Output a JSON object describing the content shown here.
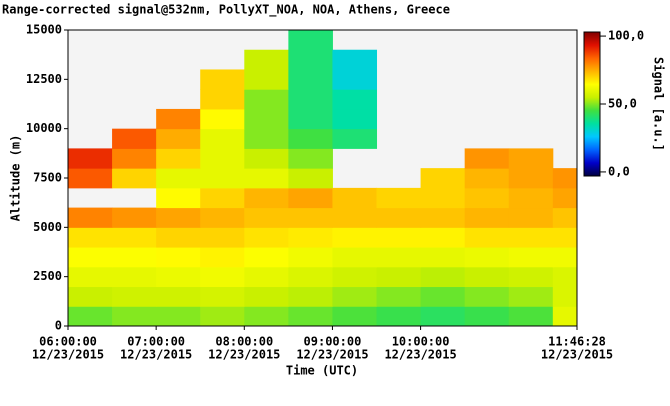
{
  "chart_data": {
    "type": "heatmap",
    "title": "Range-corrected signal@532nm, PollyXT_NOA, NOA, Athens, Greece",
    "x_label": "Time (UTC)",
    "y_label": "Altitude (m)",
    "colorbar_label": "Signal [a.u.]",
    "xlim": [
      6,
      11.774444
    ],
    "xticks": [
      {
        "value": 6,
        "label": "06:00:00"
      },
      {
        "value": 7,
        "label": "07:00:00"
      },
      {
        "value": 8,
        "label": "08:00:00"
      },
      {
        "value": 9,
        "label": "09:00:00"
      },
      {
        "value": 10,
        "label": "10:00:00"
      },
      {
        "value": 11.774444,
        "label": "11:46:28"
      }
    ],
    "xtick_dates": [
      "12/23/2015",
      "12/23/2015",
      "12/23/2015",
      "12/23/2015",
      "12/23/2015",
      "12/23/2015"
    ],
    "ylim": [
      0,
      15000
    ],
    "yticks": [
      0,
      2500,
      5000,
      7500,
      10000,
      12500,
      15000
    ],
    "clim": [
      -3,
      103
    ],
    "cticks": [
      {
        "value": 100,
        "label": "100,0"
      },
      {
        "value": 50,
        "label": "50,0"
      },
      {
        "value": 0,
        "label": "0,0"
      }
    ],
    "colormap": [
      "#000040",
      "#0000c8",
      "#0064ff",
      "#00c8ff",
      "#00e0a0",
      "#40e040",
      "#c8f000",
      "#ffff00",
      "#ffb400",
      "#ff6400",
      "#e01000",
      "#800000"
    ],
    "x_edges": [
      6,
      6.5,
      7,
      7.5,
      8,
      8.5,
      9,
      9.5,
      10,
      10.5,
      11,
      11.5,
      11.774444
    ],
    "y_edges": [
      0,
      1000,
      2000,
      3000,
      4000,
      5000,
      6000,
      7000,
      8000,
      9000,
      10000,
      11000,
      12000,
      13000,
      14000,
      15000
    ],
    "values": [
      [
        48,
        50,
        50,
        52,
        50,
        48,
        46,
        44,
        42,
        44,
        46,
        60
      ],
      [
        55,
        56,
        56,
        57,
        55,
        54,
        52,
        50,
        48,
        50,
        52,
        58
      ],
      [
        60,
        60,
        61,
        62,
        60,
        58,
        56,
        55,
        54,
        55,
        56,
        58
      ],
      [
        64,
        64,
        65,
        66,
        64,
        62,
        60,
        60,
        60,
        61,
        62,
        62
      ],
      [
        68,
        68,
        70,
        70,
        68,
        67,
        66,
        66,
        66,
        68,
        68,
        68
      ],
      [
        80,
        78,
        76,
        74,
        72,
        72,
        72,
        72,
        72,
        74,
        74,
        72
      ],
      [
        null,
        null,
        65,
        70,
        74,
        76,
        72,
        70,
        70,
        72,
        74,
        76
      ],
      [
        85,
        70,
        60,
        60,
        60,
        55,
        null,
        null,
        70,
        74,
        76,
        78
      ],
      [
        90,
        80,
        70,
        60,
        55,
        50,
        null,
        null,
        null,
        78,
        76,
        null
      ],
      [
        null,
        85,
        75,
        60,
        50,
        45,
        40,
        null,
        null,
        null,
        null,
        null
      ],
      [
        null,
        null,
        80,
        65,
        50,
        40,
        35,
        null,
        null,
        null,
        null,
        null
      ],
      [
        null,
        null,
        null,
        70,
        50,
        40,
        35,
        null,
        null,
        null,
        null,
        null
      ],
      [
        null,
        null,
        null,
        70,
        55,
        40,
        30,
        null,
        null,
        null,
        null,
        null
      ],
      [
        null,
        null,
        null,
        null,
        55,
        40,
        30,
        null,
        null,
        null,
        null,
        null
      ],
      [
        null,
        null,
        null,
        null,
        null,
        40,
        null,
        null,
        null,
        null,
        null,
        null
      ]
    ]
  }
}
